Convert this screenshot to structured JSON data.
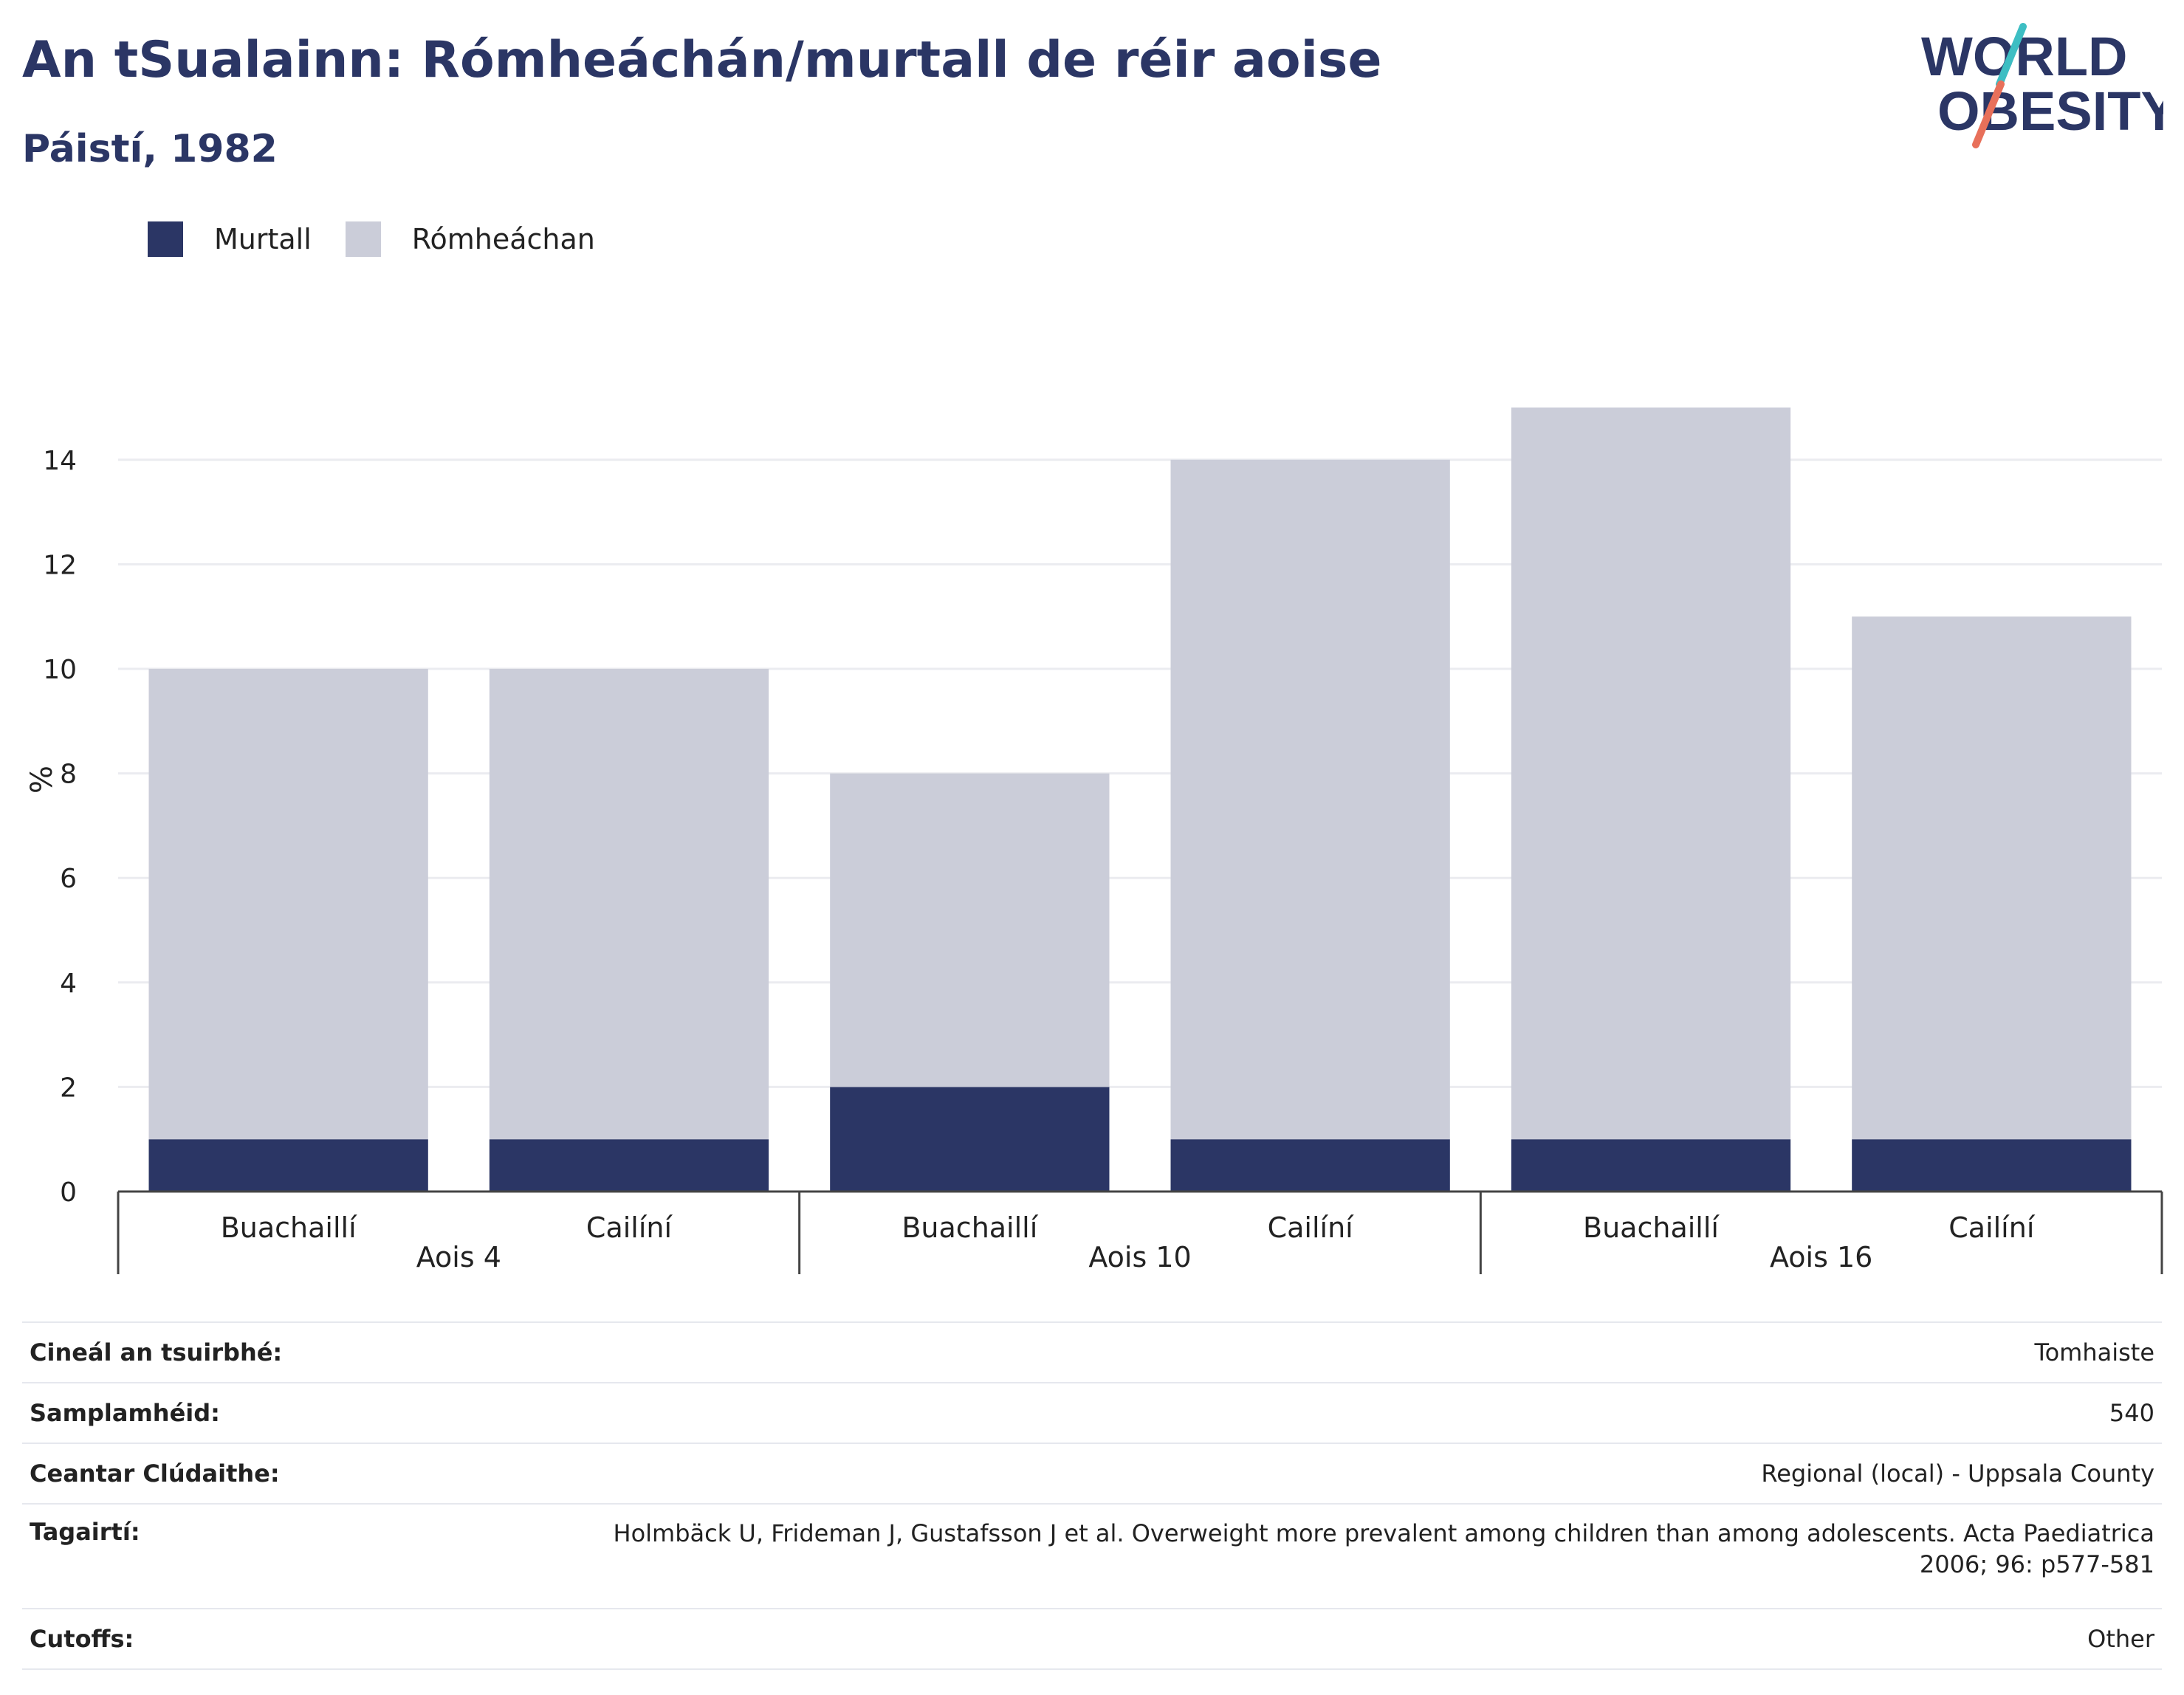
{
  "header": {
    "title": "An tSualainn: Rómheáchán/murtall de réir aoise",
    "subtitle": "Páistí, 1982"
  },
  "logo": {
    "line1": "WORLD",
    "line2": "OBESITY",
    "text_color": "#2b3665",
    "slash_color_top": "#3dbec3",
    "slash_color_bottom": "#e8705a"
  },
  "colors": {
    "murtall": "#2b3665",
    "romheachan": "#cbcdd9",
    "grid": "#ebecf0",
    "axis": "#444444"
  },
  "chart_data": {
    "type": "bar",
    "stacked": true,
    "ylabel": "%",
    "ylim": [
      0,
      16
    ],
    "yticks": [
      0,
      2,
      4,
      6,
      8,
      10,
      12,
      14
    ],
    "grid": true,
    "legend_position": "top-left",
    "groups": [
      {
        "label": "Aois 4",
        "categories": [
          "Buachaillí",
          "Cailíní"
        ]
      },
      {
        "label": "Aois 10",
        "categories": [
          "Buachaillí",
          "Cailíní"
        ]
      },
      {
        "label": "Aois 16",
        "categories": [
          "Buachaillí",
          "Cailíní"
        ]
      }
    ],
    "series": [
      {
        "name": "Murtall",
        "color": "#2b3665",
        "values": [
          1,
          1,
          2,
          1,
          1,
          1
        ]
      },
      {
        "name": "Rómheáchan",
        "color": "#cbcdd9",
        "values": [
          9,
          9,
          6,
          13,
          14,
          10
        ]
      }
    ]
  },
  "info": [
    {
      "label": "Cineál an tsuirbhé:",
      "value": "Tomhaiste"
    },
    {
      "label": "Samplamhéid:",
      "value": "540"
    },
    {
      "label": "Ceantar Clúdaithe:",
      "value": "Regional (local) - Uppsala County"
    },
    {
      "label": "Tagairtí:",
      "value": "Holmbäck U, Frideman J, Gustafsson J et al. Overweight more prevalent among children than among adolescents. Acta Paediatrica 2006; 96: p577-581"
    },
    {
      "label": "Cutoffs:",
      "value": "Other"
    }
  ]
}
